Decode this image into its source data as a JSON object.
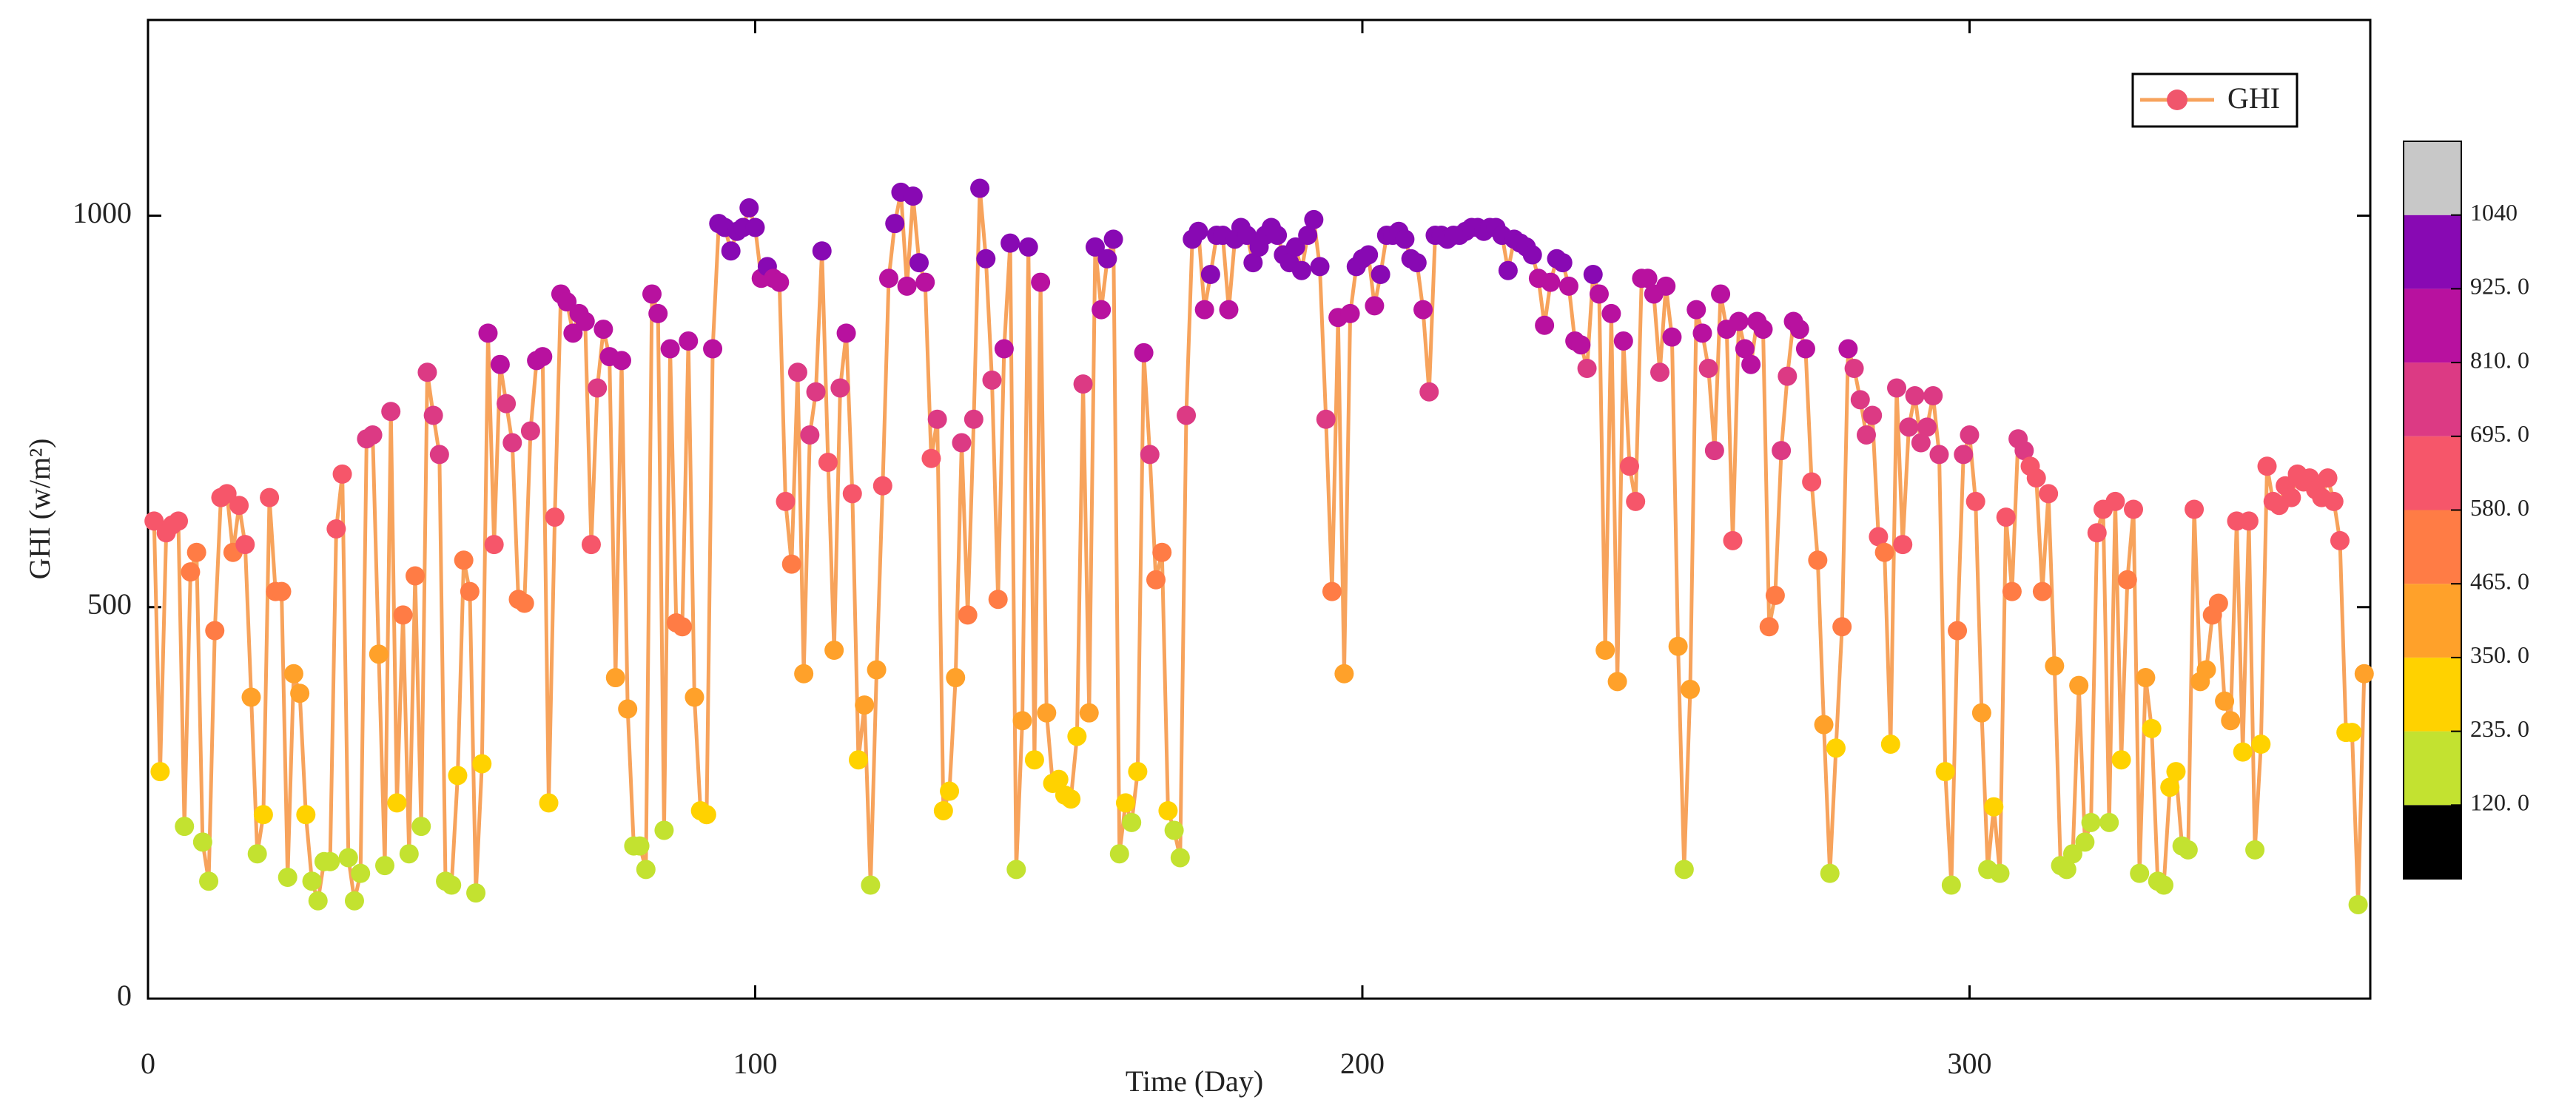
{
  "chart_data": {
    "type": "line",
    "xlabel": "Time (Day)",
    "ylabel": "GHI (w/m²)",
    "xlim": [
      0,
      366
    ],
    "ylim": [
      0,
      1250
    ],
    "xticks": [
      0,
      100,
      200,
      300
    ],
    "yticks": [
      0,
      500,
      1000
    ],
    "legend": "upper right",
    "colorbar": {
      "ticks": [
        {
          "value": 120,
          "label": "120. 0"
        },
        {
          "value": 235,
          "label": "235. 0"
        },
        {
          "value": 350,
          "label": "350. 0"
        },
        {
          "value": 465,
          "label": "465. 0"
        },
        {
          "value": 580,
          "label": "580. 0"
        },
        {
          "value": 695,
          "label": "695. 0"
        },
        {
          "value": 810,
          "label": "810. 0"
        },
        {
          "value": 925,
          "label": "925. 0"
        },
        1040
      ],
      "colors": [
        "#000000",
        "#c3e230",
        "#ffd200",
        "#ffa12a",
        "#ff7c45",
        "#f6566a",
        "#dc3a84",
        "#b8119f",
        "#8809b3",
        "#c8c8c8"
      ]
    },
    "x": [
      1,
      2,
      3,
      4,
      5,
      6,
      7,
      8,
      9,
      10,
      11,
      12,
      13,
      14,
      15,
      16,
      17,
      18,
      19,
      20,
      21,
      22,
      23,
      24,
      25,
      26,
      27,
      28,
      29,
      30,
      31,
      32,
      33,
      34,
      35,
      36,
      37,
      38,
      39,
      40,
      41,
      42,
      43,
      44,
      45,
      46,
      47,
      48,
      49,
      50,
      51,
      52,
      53,
      54,
      55,
      56,
      57,
      58,
      59,
      60,
      61,
      62,
      63,
      64,
      65,
      66,
      67,
      68,
      69,
      70,
      71,
      72,
      73,
      74,
      75,
      76,
      77,
      78,
      79,
      80,
      81,
      82,
      83,
      84,
      85,
      86,
      87,
      88,
      89,
      90,
      91,
      92,
      93,
      94,
      95,
      96,
      97,
      98,
      99,
      100,
      101,
      102,
      103,
      104,
      105,
      106,
      107,
      108,
      109,
      110,
      111,
      112,
      113,
      114,
      115,
      116,
      117,
      118,
      119,
      120,
      121,
      122,
      123,
      124,
      125,
      126,
      127,
      128,
      129,
      130,
      131,
      132,
      133,
      134,
      135,
      136,
      137,
      138,
      139,
      140,
      141,
      142,
      143,
      144,
      145,
      146,
      147,
      148,
      149,
      150,
      151,
      152,
      153,
      154,
      155,
      156,
      157,
      158,
      159,
      160,
      161,
      162,
      163,
      164,
      165,
      166,
      167,
      168,
      169,
      170,
      171,
      172,
      173,
      174,
      175,
      176,
      177,
      178,
      179,
      180,
      181,
      182,
      183,
      184,
      185,
      186,
      187,
      188,
      189,
      190,
      191,
      192,
      193,
      194,
      195,
      196,
      197,
      198,
      199,
      200,
      201,
      202,
      203,
      204,
      205,
      206,
      207,
      208,
      209,
      210,
      211,
      212,
      213,
      214,
      215,
      216,
      217,
      218,
      219,
      220,
      221,
      222,
      223,
      224,
      225,
      226,
      227,
      228,
      229,
      230,
      231,
      232,
      233,
      234,
      235,
      236,
      237,
      238,
      239,
      240,
      241,
      242,
      243,
      244,
      245,
      246,
      247,
      248,
      249,
      250,
      251,
      252,
      253,
      254,
      255,
      256,
      257,
      258,
      259,
      260,
      261,
      262,
      263,
      264,
      265,
      266,
      267,
      268,
      269,
      270,
      271,
      272,
      273,
      274,
      275,
      276,
      277,
      278,
      279,
      280,
      281,
      282,
      283,
      284,
      285,
      286,
      287,
      288,
      289,
      290,
      291,
      292,
      293,
      294,
      295,
      296,
      297,
      298,
      299,
      300,
      301,
      302,
      303,
      304,
      305,
      306,
      307,
      308,
      309,
      310,
      311,
      312,
      313,
      314,
      315,
      316,
      317,
      318,
      319,
      320,
      321,
      322,
      323,
      324,
      325,
      326,
      327,
      328,
      329,
      330,
      331,
      332,
      333,
      334,
      335,
      336,
      337,
      338,
      339,
      340,
      341,
      342,
      343,
      344,
      345,
      346,
      347,
      348,
      349,
      350,
      351,
      352,
      353,
      354,
      355,
      356,
      357,
      358,
      359,
      360,
      361,
      362,
      363,
      364,
      365
    ],
    "series": [
      {
        "name": "GHI",
        "color": "#f7a35c",
        "values": [
          610,
          290,
          595,
          605,
          610,
          220,
          545,
          570,
          200,
          150,
          470,
          640,
          645,
          570,
          630,
          580,
          385,
          185,
          235,
          640,
          520,
          520,
          155,
          415,
          390,
          235,
          150,
          125,
          175,
          175,
          600,
          670,
          180,
          125,
          160,
          715,
          720,
          440,
          170,
          750,
          250,
          490,
          185,
          540,
          220,
          800,
          745,
          695,
          150,
          145,
          285,
          560,
          520,
          135,
          300,
          850,
          580,
          810,
          760,
          710,
          510,
          505,
          725,
          815,
          820,
          250,
          615,
          900,
          890,
          850,
          875,
          865,
          580,
          780,
          855,
          820,
          410,
          815,
          370,
          195,
          195,
          165,
          900,
          875,
          215,
          830,
          480,
          475,
          840,
          385,
          240,
          235,
          830,
          990,
          985,
          955,
          980,
          985,
          1010,
          985,
          920,
          935,
          920,
          915,
          635,
          555,
          800,
          415,
          720,
          775,
          955,
          685,
          445,
          780,
          850,
          645,
          305,
          375,
          145,
          420,
          655,
          920,
          990,
          1030,
          910,
          1025,
          940,
          915,
          690,
          740,
          240,
          265,
          410,
          710,
          490,
          740,
          1035,
          945,
          790,
          510,
          830,
          965,
          165,
          355,
          960,
          305,
          915,
          365,
          275,
          280,
          260,
          255,
          335,
          785,
          365,
          960,
          880,
          945,
          970,
          185,
          250,
          225,
          290,
          825,
          695,
          535,
          570,
          240,
          215,
          180,
          745,
          970,
          980,
          880,
          925,
          975,
          975,
          880,
          970,
          985,
          975,
          940,
          960,
          975,
          985,
          975,
          950,
          940,
          960,
          930,
          975,
          995,
          935,
          740,
          520,
          870,
          415,
          875,
          935,
          945,
          950,
          885,
          925,
          975,
          975,
          980,
          970,
          945,
          940,
          880,
          775,
          975,
          975,
          970,
          975,
          975,
          980,
          985,
          985,
          980,
          985,
          985,
          975,
          930,
          970,
          965,
          960,
          950,
          920,
          860,
          915,
          945,
          940,
          910,
          840,
          835,
          805,
          925,
          900,
          445,
          875,
          405,
          840,
          680,
          635,
          920,
          920,
          900,
          800,
          910,
          845,
          450,
          165,
          395,
          880,
          850,
          805,
          700,
          900,
          855,
          585,
          865,
          830,
          810,
          865,
          855,
          475,
          515,
          700,
          795,
          865,
          855,
          830,
          660,
          560,
          350,
          160,
          320,
          475,
          830,
          805,
          765,
          720,
          745,
          590,
          570,
          325,
          780,
          580,
          730,
          770,
          710,
          730,
          770,
          695,
          290,
          145,
          470,
          695,
          720,
          635,
          365,
          165,
          245,
          160,
          615,
          520,
          715,
          700,
          680,
          665,
          520,
          645,
          425,
          170,
          165,
          185,
          400,
          200,
          225,
          595,
          625,
          225,
          635,
          305,
          535,
          625,
          160,
          410,
          345,
          150,
          145,
          270,
          290,
          195,
          190,
          625,
          405,
          420,
          490,
          505,
          380,
          355,
          610,
          315,
          610,
          190,
          325,
          680,
          635,
          630,
          655,
          640,
          670,
          660,
          665,
          650,
          640,
          665,
          635,
          585,
          340,
          340,
          120,
          415
        ]
      }
    ]
  }
}
